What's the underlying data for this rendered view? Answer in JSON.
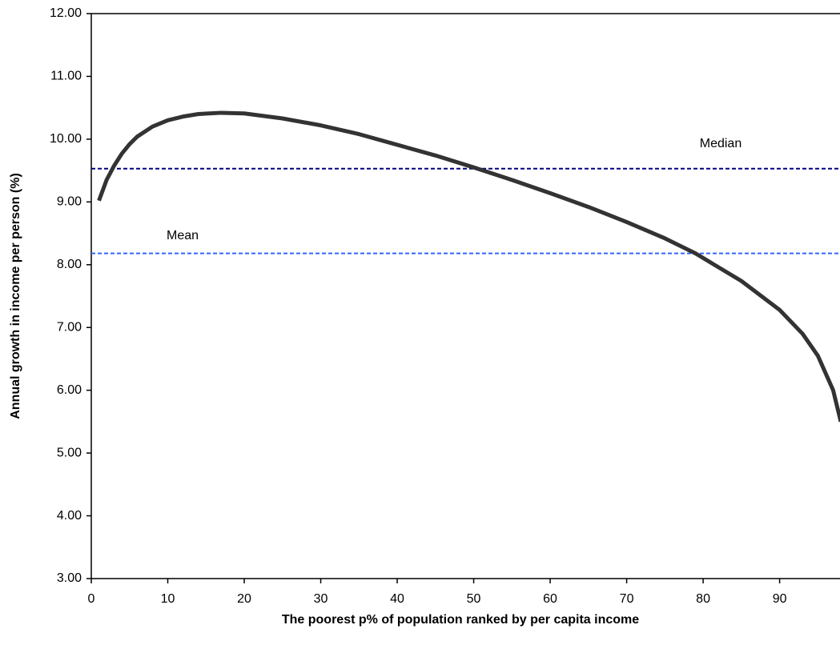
{
  "chart_data": {
    "type": "line",
    "x_label": "The poorest p% of population ranked by per capita income",
    "y_label": "Annual growth in income per person (%)",
    "x": [
      1,
      2,
      3,
      4,
      5,
      6,
      8,
      10,
      12,
      14,
      17,
      20,
      25,
      30,
      35,
      40,
      45,
      50,
      55,
      60,
      65,
      70,
      75,
      79,
      85,
      90,
      93,
      95,
      97,
      98
    ],
    "series": [
      {
        "color": "#333333",
        "values": [
          9.02,
          9.35,
          9.58,
          9.77,
          9.92,
          10.04,
          10.2,
          10.3,
          10.36,
          10.4,
          10.42,
          10.41,
          10.33,
          10.22,
          10.08,
          9.91,
          9.74,
          9.55,
          9.35,
          9.14,
          8.92,
          8.68,
          8.42,
          8.18,
          7.74,
          7.28,
          6.9,
          6.55,
          6.0,
          5.5
        ]
      }
    ],
    "reference_lines": [
      {
        "name": "Median",
        "value": 9.53,
        "color": "#000080"
      },
      {
        "name": "Mean",
        "value": 8.18,
        "color": "#3366ff"
      }
    ],
    "xlim": [
      0,
      98
    ],
    "ylim": [
      3,
      12
    ],
    "xticks": [
      0,
      10,
      20,
      30,
      40,
      50,
      60,
      70,
      80,
      90
    ],
    "yticks": [
      {
        "value": 3,
        "label": "3.00"
      },
      {
        "value": 4,
        "label": "4.00"
      },
      {
        "value": 5,
        "label": "5.00"
      },
      {
        "value": 6,
        "label": "6.00"
      },
      {
        "value": 7,
        "label": "7.00"
      },
      {
        "value": 8,
        "label": "8.00"
      },
      {
        "value": 9,
        "label": "9.00"
      },
      {
        "value": 10,
        "label": "10.00"
      },
      {
        "value": 11,
        "label": "11.00"
      },
      {
        "value": 12,
        "label": "12.00"
      }
    ]
  }
}
